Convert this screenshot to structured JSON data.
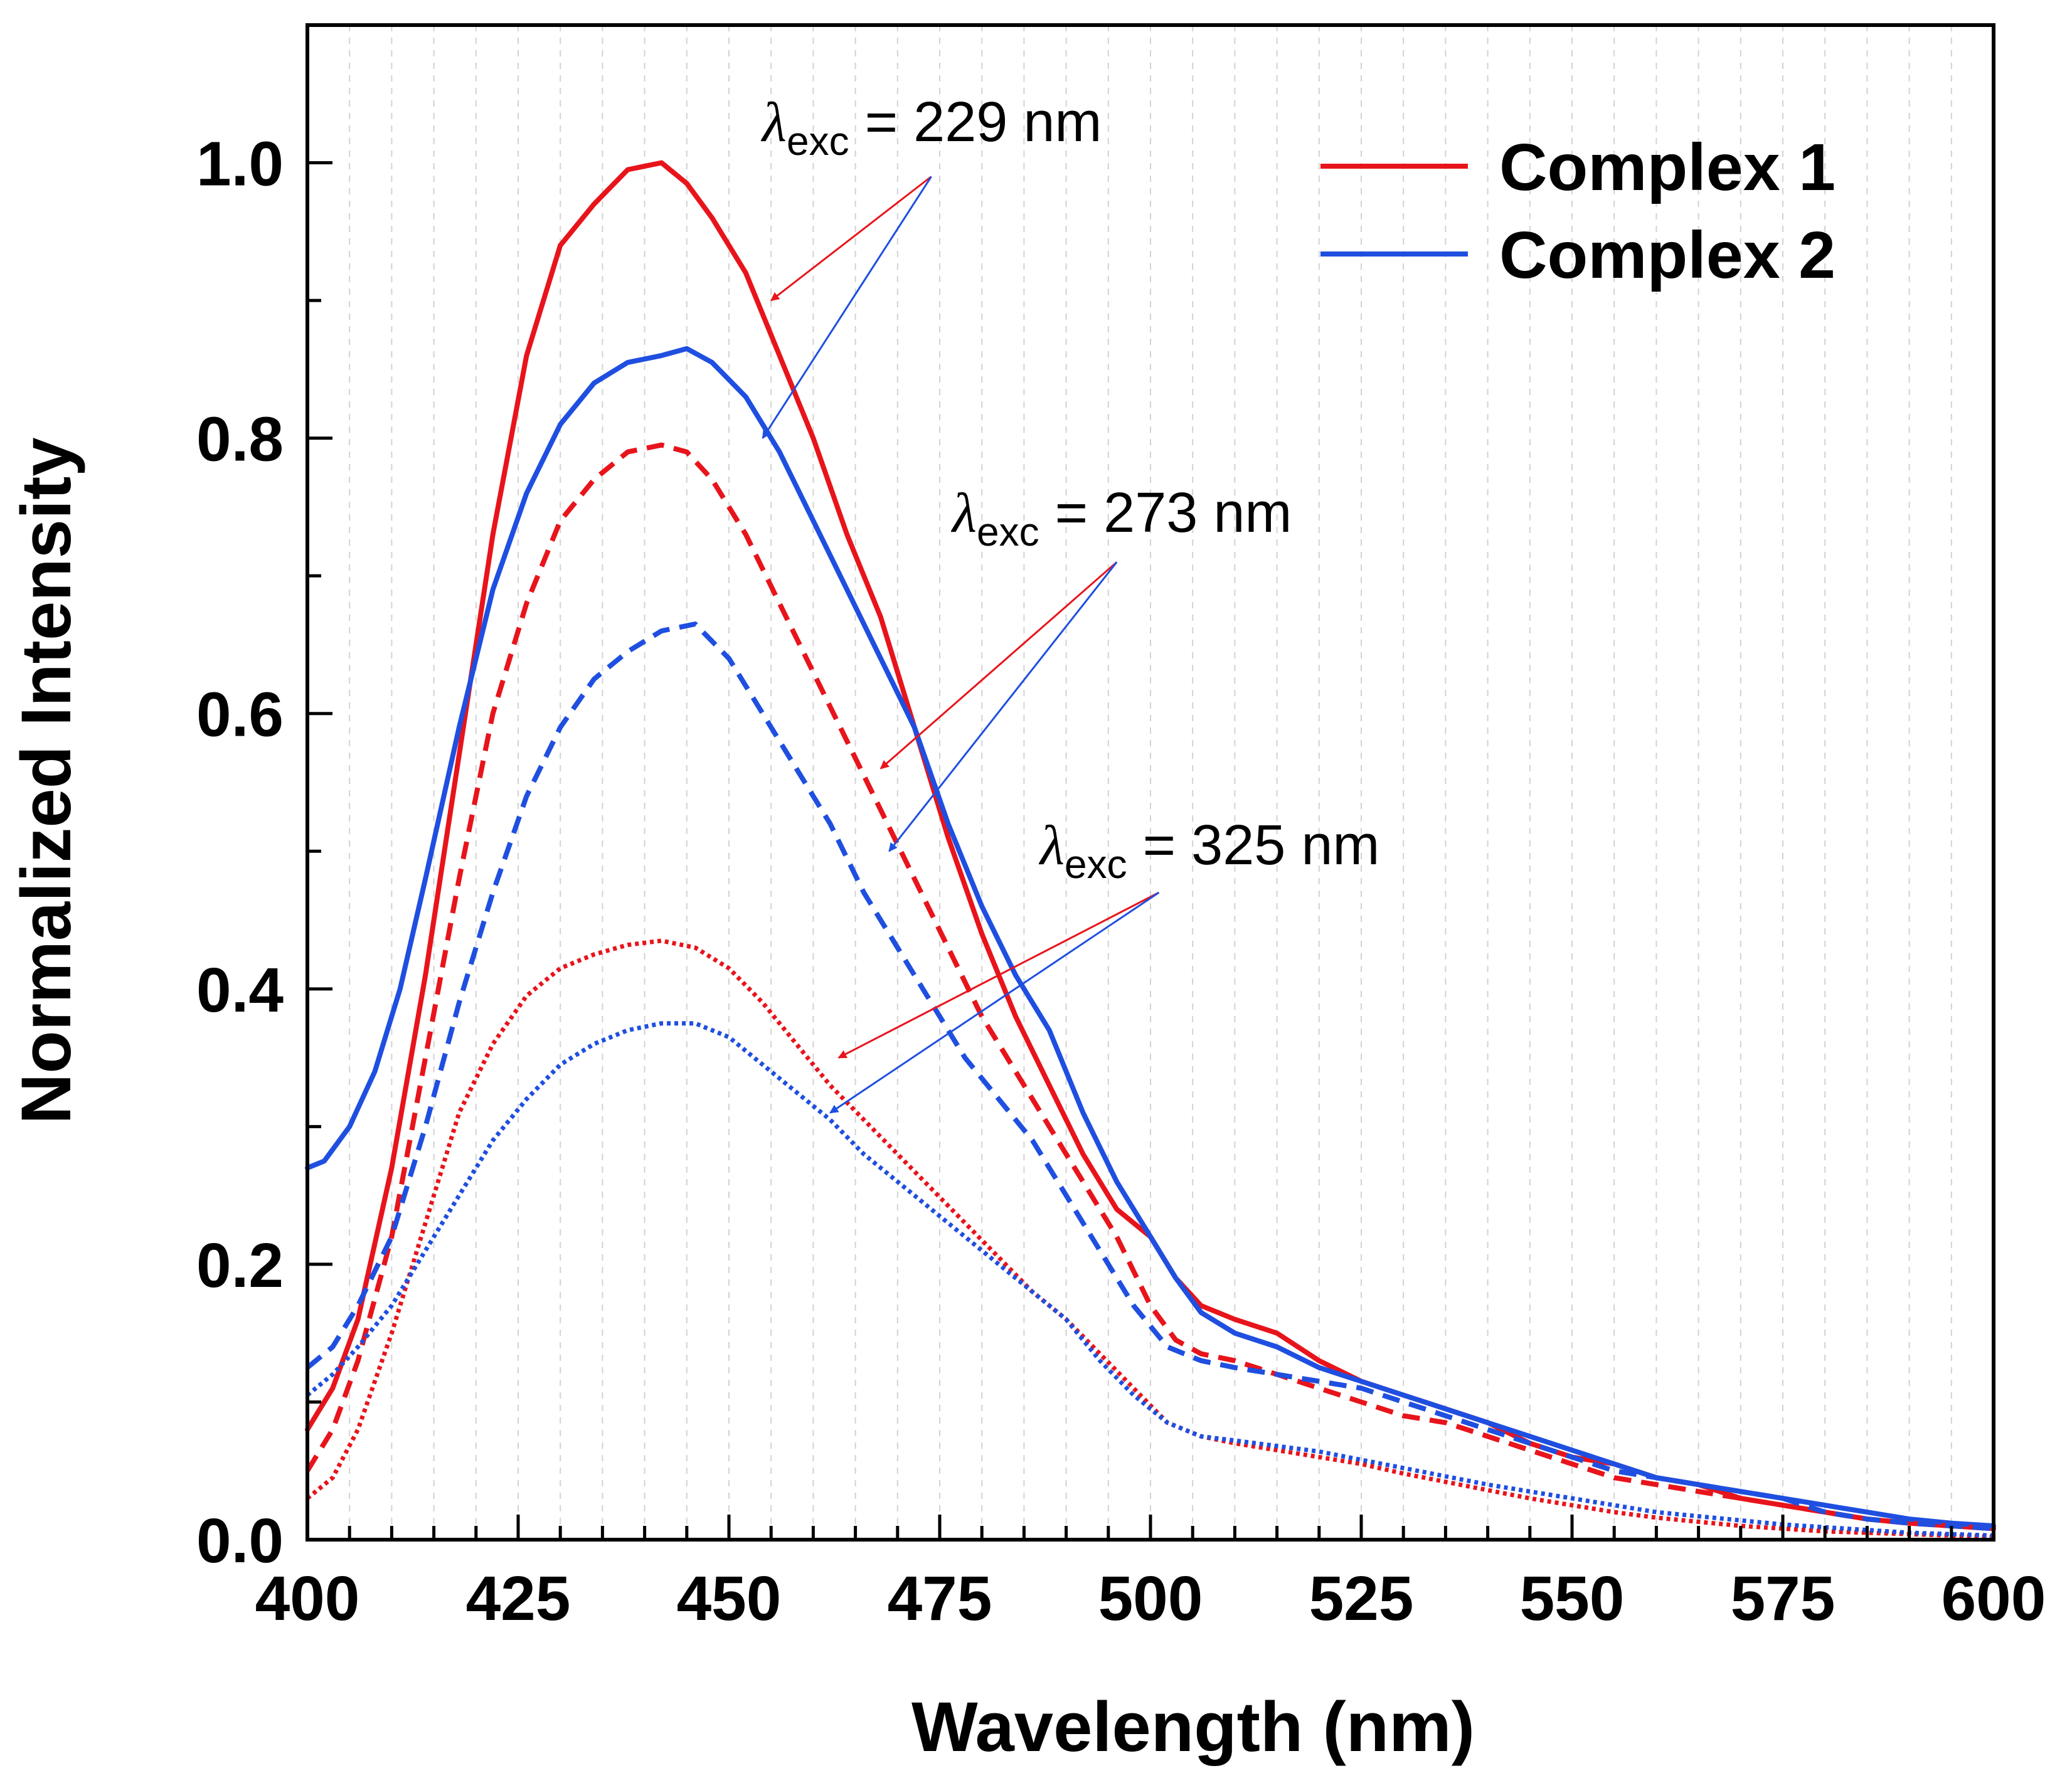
{
  "chart_data": {
    "type": "line",
    "title": "",
    "xlabel": "Wavelength (nm)",
    "ylabel": "Normalized Intensity",
    "xlim": [
      400,
      600
    ],
    "ylim": [
      0,
      1.1
    ],
    "xticks": [
      400,
      425,
      450,
      475,
      500,
      525,
      550,
      575,
      600
    ],
    "xtick_labels": [
      "400",
      "425",
      "450",
      "475",
      "500",
      "525",
      "550",
      "575",
      "600"
    ],
    "yticks": [
      0.0,
      0.2,
      0.4,
      0.6,
      0.8,
      1.0
    ],
    "ytick_labels": [
      "0.0",
      "0.2",
      "0.4",
      "0.6",
      "0.8",
      "1.0"
    ],
    "grid": "vertical-minor-dashed",
    "legend_position": "top-right",
    "legend": [
      {
        "label": "Complex 1",
        "color": "#e8141b"
      },
      {
        "label": "Complex 2",
        "color": "#1f4fe0"
      }
    ],
    "annotations": [
      {
        "lambda": "λ",
        "sub": "exc",
        "rest": " = 229 nm",
        "anchor": [
          474,
          0.99
        ],
        "targets": [
          [
            455,
            0.9
          ],
          [
            454,
            0.8
          ]
        ]
      },
      {
        "lambda": "λ",
        "sub": "exc",
        "rest": " = 273 nm",
        "anchor": [
          496,
          0.71
        ],
        "targets": [
          [
            468,
            0.56
          ],
          [
            469,
            0.5
          ]
        ]
      },
      {
        "lambda": "λ",
        "sub": "exc",
        "rest": " = 325 nm",
        "anchor": [
          501,
          0.47
        ],
        "targets": [
          [
            463,
            0.35
          ],
          [
            462,
            0.31
          ]
        ]
      }
    ],
    "series": [
      {
        "name": "Complex 1",
        "excitation": "229 nm",
        "style": "solid",
        "color": "#e8141b",
        "x": [
          400,
          403,
          406,
          410,
          414,
          418,
          422,
          426,
          430,
          434,
          438,
          442,
          445,
          448,
          452,
          456,
          460,
          464,
          468,
          472,
          476,
          480,
          484,
          488,
          492,
          496,
          500,
          503,
          506,
          510,
          515,
          520,
          525,
          530,
          535,
          540,
          545,
          550,
          555,
          560,
          565,
          570,
          575,
          580,
          585,
          590,
          595,
          600
        ],
        "y": [
          0.08,
          0.11,
          0.16,
          0.27,
          0.41,
          0.57,
          0.73,
          0.86,
          0.94,
          0.97,
          0.995,
          1.0,
          0.985,
          0.96,
          0.92,
          0.86,
          0.8,
          0.73,
          0.67,
          0.59,
          0.51,
          0.44,
          0.38,
          0.33,
          0.28,
          0.24,
          0.22,
          0.19,
          0.17,
          0.16,
          0.15,
          0.13,
          0.115,
          0.105,
          0.095,
          0.085,
          0.07,
          0.06,
          0.055,
          0.045,
          0.04,
          0.03,
          0.025,
          0.02,
          0.015,
          0.012,
          0.01,
          0.008
        ]
      },
      {
        "name": "Complex 2",
        "excitation": "229 nm",
        "style": "solid",
        "color": "#1f4fe0",
        "x": [
          400,
          402,
          405,
          408,
          411,
          414,
          418,
          422,
          426,
          430,
          434,
          438,
          442,
          445,
          448,
          452,
          456,
          460,
          464,
          468,
          472,
          476,
          480,
          484,
          488,
          492,
          496,
          500,
          503,
          506,
          510,
          515,
          520,
          525,
          530,
          535,
          540,
          545,
          550,
          555,
          560,
          565,
          570,
          575,
          580,
          585,
          590,
          595,
          600
        ],
        "y": [
          0.27,
          0.275,
          0.3,
          0.34,
          0.4,
          0.48,
          0.59,
          0.69,
          0.76,
          0.81,
          0.84,
          0.855,
          0.86,
          0.865,
          0.855,
          0.83,
          0.79,
          0.74,
          0.69,
          0.64,
          0.59,
          0.52,
          0.46,
          0.41,
          0.37,
          0.31,
          0.26,
          0.22,
          0.19,
          0.165,
          0.15,
          0.14,
          0.125,
          0.115,
          0.105,
          0.095,
          0.085,
          0.075,
          0.065,
          0.055,
          0.045,
          0.04,
          0.035,
          0.03,
          0.025,
          0.02,
          0.015,
          0.012,
          0.01
        ]
      },
      {
        "name": "Complex 1",
        "excitation": "273 nm",
        "style": "dashed",
        "color": "#e8141b",
        "x": [
          400,
          403,
          406,
          410,
          414,
          418,
          422,
          426,
          430,
          434,
          438,
          442,
          445,
          448,
          452,
          456,
          460,
          464,
          468,
          472,
          476,
          480,
          484,
          488,
          492,
          496,
          500,
          503,
          506,
          510,
          515,
          520,
          525,
          530,
          535,
          540,
          545,
          550,
          555,
          560,
          565,
          570,
          575,
          580,
          585,
          590,
          595,
          600
        ],
        "y": [
          0.05,
          0.08,
          0.13,
          0.22,
          0.35,
          0.48,
          0.6,
          0.68,
          0.74,
          0.77,
          0.79,
          0.795,
          0.79,
          0.77,
          0.73,
          0.68,
          0.63,
          0.58,
          0.53,
          0.48,
          0.43,
          0.38,
          0.34,
          0.3,
          0.26,
          0.22,
          0.17,
          0.145,
          0.135,
          0.13,
          0.12,
          0.11,
          0.1,
          0.09,
          0.085,
          0.075,
          0.065,
          0.055,
          0.045,
          0.04,
          0.035,
          0.03,
          0.025,
          0.02,
          0.015,
          0.012,
          0.01,
          0.008
        ]
      },
      {
        "name": "Complex 2",
        "excitation": "273 nm",
        "style": "dashed",
        "color": "#1f4fe0",
        "x": [
          400,
          403,
          406,
          410,
          414,
          418,
          422,
          426,
          430,
          434,
          438,
          442,
          446,
          450,
          454,
          458,
          462,
          466,
          470,
          474,
          478,
          482,
          486,
          490,
          494,
          498,
          502,
          506,
          510,
          515,
          520,
          525,
          530,
          535,
          540,
          545,
          550,
          555,
          560,
          565,
          570,
          575,
          580,
          585,
          590,
          595,
          600
        ],
        "y": [
          0.125,
          0.14,
          0.17,
          0.22,
          0.3,
          0.39,
          0.47,
          0.54,
          0.59,
          0.625,
          0.645,
          0.66,
          0.665,
          0.64,
          0.6,
          0.56,
          0.52,
          0.47,
          0.43,
          0.39,
          0.35,
          0.32,
          0.29,
          0.25,
          0.21,
          0.17,
          0.14,
          0.13,
          0.125,
          0.12,
          0.115,
          0.11,
          0.1,
          0.09,
          0.08,
          0.07,
          0.06,
          0.05,
          0.045,
          0.04,
          0.035,
          0.03,
          0.02,
          0.015,
          0.012,
          0.01,
          0.008
        ]
      },
      {
        "name": "Complex 1",
        "excitation": "325 nm",
        "style": "dotted",
        "color": "#e8141b",
        "x": [
          400,
          403,
          406,
          410,
          414,
          418,
          422,
          426,
          430,
          434,
          438,
          442,
          446,
          450,
          454,
          458,
          462,
          466,
          470,
          474,
          478,
          482,
          486,
          490,
          494,
          498,
          502,
          506,
          510,
          515,
          520,
          525,
          530,
          535,
          540,
          545,
          550,
          555,
          560,
          565,
          570,
          575,
          580,
          585,
          590,
          595,
          600
        ],
        "y": [
          0.03,
          0.045,
          0.08,
          0.15,
          0.23,
          0.31,
          0.36,
          0.395,
          0.415,
          0.425,
          0.432,
          0.435,
          0.43,
          0.415,
          0.39,
          0.36,
          0.33,
          0.305,
          0.28,
          0.255,
          0.23,
          0.205,
          0.18,
          0.16,
          0.135,
          0.11,
          0.085,
          0.075,
          0.07,
          0.065,
          0.06,
          0.055,
          0.048,
          0.042,
          0.036,
          0.03,
          0.025,
          0.02,
          0.016,
          0.013,
          0.01,
          0.008,
          0.006,
          0.005,
          0.004,
          0.003,
          0.002
        ]
      },
      {
        "name": "Complex 2",
        "excitation": "325 nm",
        "style": "dotted",
        "color": "#1f4fe0",
        "x": [
          400,
          403,
          406,
          410,
          414,
          418,
          422,
          426,
          430,
          434,
          438,
          442,
          446,
          450,
          454,
          458,
          462,
          466,
          470,
          474,
          478,
          482,
          486,
          490,
          494,
          498,
          502,
          506,
          510,
          515,
          520,
          525,
          530,
          535,
          540,
          545,
          550,
          555,
          560,
          565,
          570,
          575,
          580,
          585,
          590,
          595,
          600
        ],
        "y": [
          0.105,
          0.12,
          0.14,
          0.17,
          0.21,
          0.25,
          0.29,
          0.32,
          0.345,
          0.36,
          0.37,
          0.375,
          0.375,
          0.365,
          0.345,
          0.325,
          0.305,
          0.28,
          0.26,
          0.24,
          0.22,
          0.2,
          0.18,
          0.16,
          0.13,
          0.105,
          0.085,
          0.075,
          0.072,
          0.068,
          0.064,
          0.058,
          0.052,
          0.046,
          0.04,
          0.035,
          0.03,
          0.025,
          0.02,
          0.017,
          0.014,
          0.011,
          0.009,
          0.007,
          0.005,
          0.004,
          0.003
        ]
      }
    ]
  }
}
